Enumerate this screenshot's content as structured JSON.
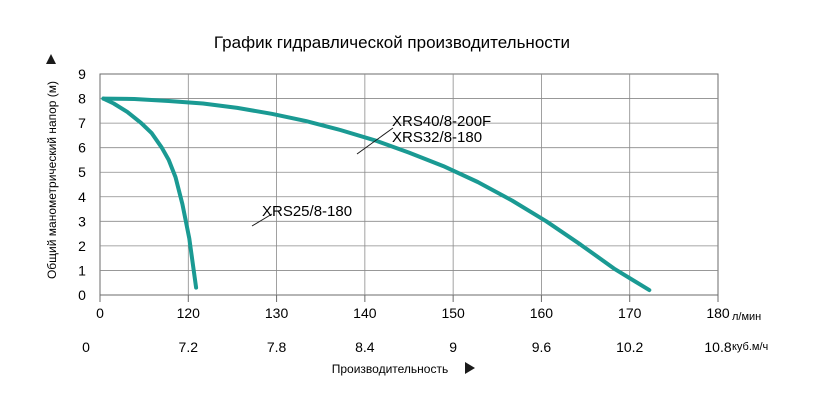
{
  "chart_data": {
    "type": "line",
    "title": "График гидравлической производительности",
    "ylabel": "Общий манометрический напор (м)",
    "xlabel": "Производительность",
    "x_unit": "л/мин",
    "x2_unit": "куб.м/ч",
    "xlim": [
      0,
      180
    ],
    "ylim": [
      0,
      9
    ],
    "y_ticks": [
      "0",
      "1",
      "2",
      "3",
      "4",
      "5",
      "6",
      "7",
      "8",
      "9"
    ],
    "x_ticks": [
      "0",
      "120",
      "130",
      "140",
      "150",
      "160",
      "170",
      "180"
    ],
    "x2_ticks": [
      "0",
      "7.2",
      "7.8",
      "8.4",
      "9",
      "9.6",
      "10.2",
      "10.8"
    ],
    "grid": true,
    "series": [
      {
        "name": "XRS25/8-180",
        "color": "#1a9a93",
        "points": [
          [
            1,
            8.0
          ],
          [
            4,
            7.8
          ],
          [
            8,
            7.45
          ],
          [
            12,
            7.0
          ],
          [
            15,
            6.6
          ],
          [
            18,
            6.0
          ],
          [
            20,
            5.5
          ],
          [
            22,
            4.8
          ],
          [
            24,
            3.7
          ],
          [
            26,
            2.3
          ],
          [
            28,
            0.3
          ]
        ]
      },
      {
        "name": "XRS40/8-200F\nXRS32/8-180",
        "color": "#1a9a93",
        "points": [
          [
            1,
            8.0
          ],
          [
            10,
            7.98
          ],
          [
            20,
            7.9
          ],
          [
            30,
            7.8
          ],
          [
            40,
            7.62
          ],
          [
            50,
            7.38
          ],
          [
            60,
            7.08
          ],
          [
            70,
            6.72
          ],
          [
            80,
            6.3
          ],
          [
            90,
            5.8
          ],
          [
            100,
            5.25
          ],
          [
            110,
            4.6
          ],
          [
            120,
            3.85
          ],
          [
            130,
            3.0
          ],
          [
            140,
            2.05
          ],
          [
            150,
            1.05
          ],
          [
            160,
            0.2
          ]
        ]
      }
    ]
  }
}
